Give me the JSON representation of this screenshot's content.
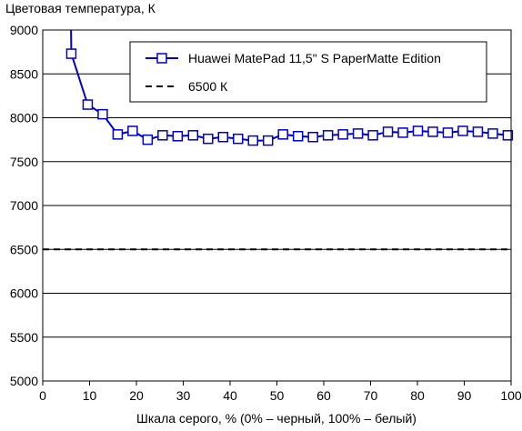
{
  "chart_data": {
    "type": "line",
    "title": "",
    "ylabel": "Цветовая температура, К",
    "xlabel": "Шкала серого, % (0% – черный, 100% – белый)",
    "xlim": [
      0,
      100
    ],
    "ylim": [
      5000,
      9000
    ],
    "x_ticks": [
      "0",
      "10",
      "20",
      "30",
      "40",
      "50",
      "60",
      "70",
      "80",
      "90",
      "100"
    ],
    "y_ticks": [
      "5000",
      "5500",
      "6000",
      "6500",
      "7000",
      "7500",
      "8000",
      "8500",
      "9000"
    ],
    "grid": "horizontal",
    "legend_position": "top-right",
    "series": [
      {
        "name": "Huawei MatePad 11,5\" S PaperMatte Edition",
        "color": "#0000cc",
        "marker": "square",
        "x": [
          6.1,
          9.6,
          12.8,
          16.0,
          19.2,
          22.4,
          25.6,
          28.8,
          32.1,
          35.3,
          38.5,
          41.7,
          44.9,
          48.1,
          51.3,
          54.5,
          57.7,
          60.9,
          64.1,
          67.3,
          70.5,
          73.7,
          76.9,
          80.1,
          83.3,
          86.5,
          89.7,
          92.9,
          96.1,
          99.3
        ],
        "y": [
          8730,
          8150,
          8040,
          7810,
          7850,
          7750,
          7800,
          7790,
          7800,
          7760,
          7780,
          7760,
          7740,
          7740,
          7810,
          7790,
          7780,
          7800,
          7810,
          7820,
          7800,
          7840,
          7830,
          7850,
          7840,
          7830,
          7850,
          7840,
          7820,
          7800
        ],
        "entry_above_axis": {
          "x": [
            6.0
          ],
          "y": [
            9200
          ]
        }
      },
      {
        "name": "6500 К",
        "color": "#000000",
        "dash": true,
        "value": 6500
      }
    ]
  }
}
